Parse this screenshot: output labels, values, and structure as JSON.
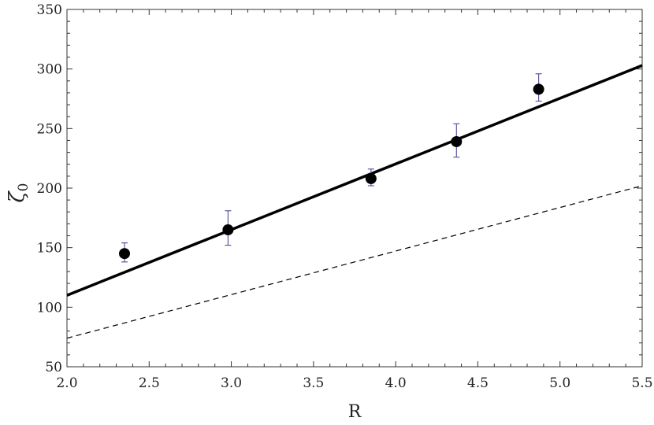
{
  "chart_data": {
    "type": "scatter",
    "title": "",
    "xlabel": "R",
    "ylabel": {
      "main": "ζ",
      "sub": "0"
    },
    "xlim": [
      2.0,
      5.5
    ],
    "ylim": [
      50,
      350
    ],
    "x_ticks": [
      "2.0",
      "2.5",
      "3.0",
      "3.5",
      "4.0",
      "4.5",
      "5.0",
      "5.5"
    ],
    "y_ticks": [
      "50",
      "100",
      "150",
      "200",
      "250",
      "300",
      "350"
    ],
    "grid": false,
    "points": [
      {
        "x": 2.35,
        "y": 145,
        "err_low": 138,
        "err_high": 154
      },
      {
        "x": 2.98,
        "y": 165,
        "err_low": 152,
        "err_high": 181
      },
      {
        "x": 3.85,
        "y": 208,
        "err_low": 202,
        "err_high": 216
      },
      {
        "x": 4.37,
        "y": 239,
        "err_low": 226,
        "err_high": 254
      },
      {
        "x": 4.87,
        "y": 283,
        "err_low": 273,
        "err_high": 296
      }
    ],
    "fit_line": {
      "style": "solid",
      "x": [
        2.0,
        5.5
      ],
      "y": [
        110,
        303
      ]
    },
    "reference_line": {
      "style": "dashed",
      "x": [
        2.0,
        5.5
      ],
      "y": [
        74,
        202
      ]
    },
    "colors": {
      "points": "#000000",
      "error_bars": "#5a5aa6",
      "fit_line": "#000000",
      "reference_line": "#000000"
    }
  }
}
